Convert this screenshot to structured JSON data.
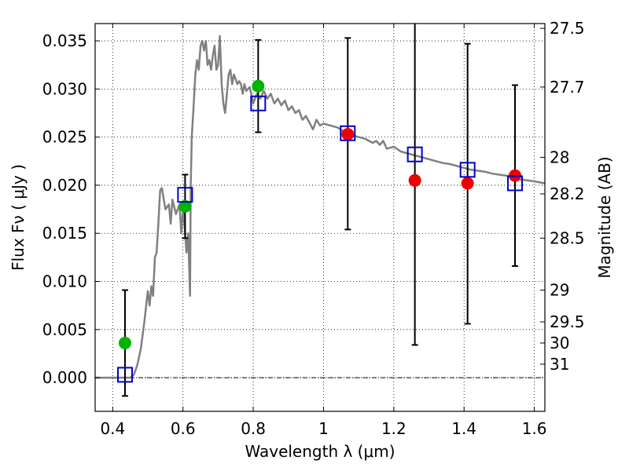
{
  "chart_data": {
    "type": "scatter",
    "xlabel": "Wavelength  λ (μm)",
    "ylabel": "Flux  Fν  ( μJy )",
    "y2label": "Magnitude (AB)",
    "xlim": [
      0.35,
      1.63
    ],
    "ylim": [
      -0.0035,
      0.0368
    ],
    "grid": true,
    "x_ticks": [
      0.4,
      0.6,
      0.8,
      1.0,
      1.2,
      1.4,
      1.6
    ],
    "x_tick_labels": [
      "0.4",
      "0.6",
      "0.8",
      "1",
      "1.2",
      "1.4",
      "1.6"
    ],
    "y_ticks": [
      0.0,
      0.005,
      0.01,
      0.015,
      0.02,
      0.025,
      0.03,
      0.035
    ],
    "y_tick_labels": [
      "0.000",
      "0.005",
      "0.010",
      "0.015",
      "0.020",
      "0.025",
      "0.030",
      "0.035"
    ],
    "mag_ticks": [
      {
        "label": "27.5",
        "flux": 0.0363
      },
      {
        "label": "27.7",
        "flux": 0.0302
      },
      {
        "label": "28",
        "flux": 0.0229
      },
      {
        "label": "28.2",
        "flux": 0.0191
      },
      {
        "label": "28.5",
        "flux": 0.0145
      },
      {
        "label": "29",
        "flux": 0.0091
      },
      {
        "label": "29.5",
        "flux": 0.0058
      },
      {
        "label": "30",
        "flux": 0.0036
      },
      {
        "label": "31",
        "flux": 0.0014
      }
    ],
    "colors": {
      "model": "#808080",
      "green": "#00b400",
      "red": "#ee0000",
      "square": "#0000cc",
      "errorbar": "#000000"
    },
    "model_sed": [
      [
        0.35,
        0.0
      ],
      [
        0.42,
        0.0
      ],
      [
        0.45,
        0.0
      ],
      [
        0.46,
        0.0003
      ],
      [
        0.47,
        0.0013
      ],
      [
        0.48,
        0.003
      ],
      [
        0.49,
        0.0058
      ],
      [
        0.5,
        0.009
      ],
      [
        0.505,
        0.0075
      ],
      [
        0.51,
        0.0095
      ],
      [
        0.515,
        0.0085
      ],
      [
        0.52,
        0.0125
      ],
      [
        0.525,
        0.013
      ],
      [
        0.53,
        0.016
      ],
      [
        0.535,
        0.0195
      ],
      [
        0.54,
        0.0197
      ],
      [
        0.55,
        0.0175
      ],
      [
        0.56,
        0.018
      ],
      [
        0.565,
        0.016
      ],
      [
        0.57,
        0.0185
      ],
      [
        0.58,
        0.017
      ],
      [
        0.59,
        0.018
      ],
      [
        0.595,
        0.015
      ],
      [
        0.6,
        0.0175
      ],
      [
        0.605,
        0.0155
      ],
      [
        0.61,
        0.013
      ],
      [
        0.615,
        0.015
      ],
      [
        0.62,
        0.0085
      ],
      [
        0.622,
        0.02
      ],
      [
        0.625,
        0.025
      ],
      [
        0.63,
        0.028
      ],
      [
        0.635,
        0.0315
      ],
      [
        0.64,
        0.033
      ],
      [
        0.645,
        0.032
      ],
      [
        0.65,
        0.0345
      ],
      [
        0.655,
        0.035
      ],
      [
        0.66,
        0.034
      ],
      [
        0.665,
        0.035
      ],
      [
        0.67,
        0.0325
      ],
      [
        0.675,
        0.033
      ],
      [
        0.68,
        0.032
      ],
      [
        0.685,
        0.0335
      ],
      [
        0.69,
        0.0345
      ],
      [
        0.695,
        0.032
      ],
      [
        0.7,
        0.0325
      ],
      [
        0.705,
        0.0355
      ],
      [
        0.71,
        0.0305
      ],
      [
        0.715,
        0.0285
      ],
      [
        0.72,
        0.0275
      ],
      [
        0.725,
        0.0295
      ],
      [
        0.73,
        0.0315
      ],
      [
        0.735,
        0.032
      ],
      [
        0.74,
        0.0305
      ],
      [
        0.745,
        0.0315
      ],
      [
        0.75,
        0.031
      ],
      [
        0.755,
        0.0305
      ],
      [
        0.76,
        0.0308
      ],
      [
        0.765,
        0.0305
      ],
      [
        0.77,
        0.0295
      ],
      [
        0.775,
        0.0305
      ],
      [
        0.78,
        0.0298
      ],
      [
        0.79,
        0.0302
      ],
      [
        0.8,
        0.0285
      ],
      [
        0.81,
        0.0295
      ],
      [
        0.82,
        0.029
      ],
      [
        0.83,
        0.0298
      ],
      [
        0.84,
        0.029
      ],
      [
        0.85,
        0.0295
      ],
      [
        0.86,
        0.0285
      ],
      [
        0.87,
        0.029
      ],
      [
        0.88,
        0.0283
      ],
      [
        0.89,
        0.0288
      ],
      [
        0.9,
        0.0278
      ],
      [
        0.91,
        0.0282
      ],
      [
        0.92,
        0.0275
      ],
      [
        0.93,
        0.0278
      ],
      [
        0.94,
        0.0268
      ],
      [
        0.95,
        0.0272
      ],
      [
        0.96,
        0.0265
      ],
      [
        0.97,
        0.0258
      ],
      [
        0.98,
        0.0268
      ],
      [
        0.99,
        0.0262
      ],
      [
        1.0,
        0.0264
      ],
      [
        1.02,
        0.0262
      ],
      [
        1.04,
        0.026
      ],
      [
        1.06,
        0.0255
      ],
      [
        1.08,
        0.0252
      ],
      [
        1.1,
        0.025
      ],
      [
        1.12,
        0.0248
      ],
      [
        1.14,
        0.0244
      ],
      [
        1.15,
        0.0246
      ],
      [
        1.16,
        0.0242
      ],
      [
        1.17,
        0.0246
      ],
      [
        1.18,
        0.0238
      ],
      [
        1.2,
        0.024
      ],
      [
        1.22,
        0.0235
      ],
      [
        1.24,
        0.0233
      ],
      [
        1.26,
        0.0231
      ],
      [
        1.28,
        0.0229
      ],
      [
        1.3,
        0.0227
      ],
      [
        1.32,
        0.0225
      ],
      [
        1.34,
        0.0223
      ],
      [
        1.36,
        0.0222
      ],
      [
        1.38,
        0.022
      ],
      [
        1.4,
        0.0218
      ],
      [
        1.42,
        0.0216
      ],
      [
        1.44,
        0.0215
      ],
      [
        1.46,
        0.0214
      ],
      [
        1.48,
        0.0212
      ],
      [
        1.5,
        0.0211
      ],
      [
        1.52,
        0.021
      ],
      [
        1.54,
        0.0208
      ],
      [
        1.56,
        0.0206
      ],
      [
        1.58,
        0.0205
      ],
      [
        1.6,
        0.0204
      ],
      [
        1.63,
        0.0202
      ]
    ],
    "series": [
      {
        "marker": "circle",
        "color_key": "green",
        "points": [
          {
            "x": 0.435,
            "y": 0.0036
          },
          {
            "x": 0.606,
            "y": 0.0178
          },
          {
            "x": 0.814,
            "y": 0.0303
          }
        ]
      },
      {
        "marker": "circle",
        "color_key": "red",
        "points": [
          {
            "x": 1.069,
            "y": 0.0253
          },
          {
            "x": 1.26,
            "y": 0.0205
          },
          {
            "x": 1.41,
            "y": 0.0202
          },
          {
            "x": 1.545,
            "y": 0.021
          }
        ]
      },
      {
        "marker": "open-square",
        "color_key": "square",
        "points": [
          {
            "x": 0.435,
            "y": 0.0003
          },
          {
            "x": 0.606,
            "y": 0.019
          },
          {
            "x": 0.814,
            "y": 0.0285
          },
          {
            "x": 1.069,
            "y": 0.0254
          },
          {
            "x": 1.26,
            "y": 0.0232
          },
          {
            "x": 1.41,
            "y": 0.0216
          },
          {
            "x": 1.545,
            "y": 0.0202
          }
        ]
      }
    ],
    "error_bars": [
      {
        "x": 0.435,
        "ylow": -0.0019,
        "yhigh": 0.0091
      },
      {
        "x": 0.606,
        "ylow": 0.0145,
        "yhigh": 0.0211
      },
      {
        "x": 0.814,
        "ylow": 0.0255,
        "yhigh": 0.0351
      },
      {
        "x": 1.069,
        "ylow": 0.0154,
        "yhigh": 0.0353
      },
      {
        "x": 1.26,
        "ylow": 0.0034,
        "yhigh": 0.0368
      },
      {
        "x": 1.41,
        "ylow": 0.0056,
        "yhigh": 0.0347
      },
      {
        "x": 1.545,
        "ylow": 0.0116,
        "yhigh": 0.0304
      }
    ]
  }
}
